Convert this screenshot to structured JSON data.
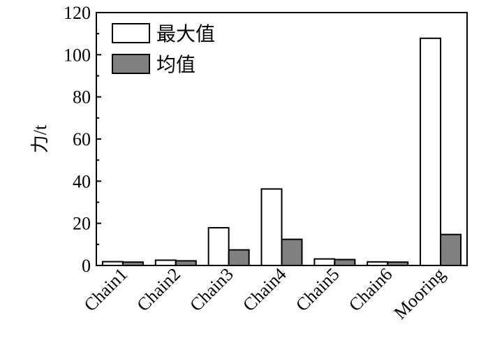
{
  "chart_data": {
    "type": "bar",
    "title": "",
    "xlabel": "",
    "ylabel": "力/t",
    "ylim": [
      0,
      120
    ],
    "yticks": [
      0,
      20,
      40,
      60,
      80,
      100,
      120
    ],
    "categories": [
      "Chain1",
      "Chain2",
      "Chain3",
      "Chain4",
      "Chain5",
      "Chain6",
      "Mooring"
    ],
    "series": [
      {
        "name": "最大值",
        "color": "#ffffff",
        "values": [
          1.8,
          2.5,
          17.9,
          36.3,
          3.1,
          1.7,
          107.8
        ]
      },
      {
        "name": "均值",
        "color": "#808080",
        "values": [
          1.6,
          2.2,
          7.4,
          12.4,
          2.8,
          1.6,
          14.7
        ]
      }
    ],
    "legend": "top-left",
    "grid": false
  }
}
